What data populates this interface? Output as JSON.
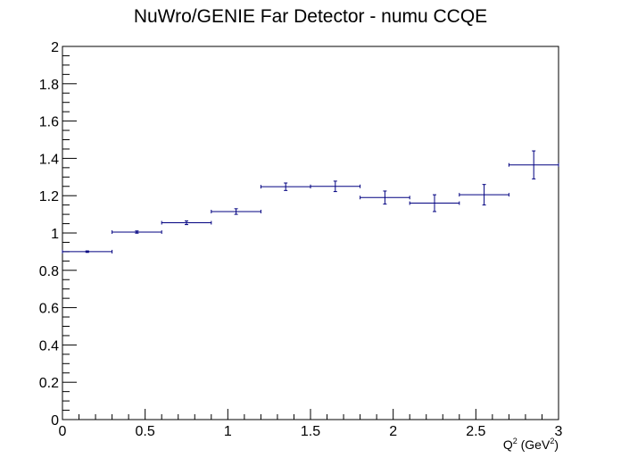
{
  "chart_data": {
    "type": "scatter",
    "title": "NuWro/GENIE Far Detector - numu CCQE",
    "xlabel": {
      "base": "Q",
      "sup": "2",
      "mid": " (GeV",
      "sup2": "2",
      "end": ")"
    },
    "ylabel": "",
    "xlim": [
      0,
      3
    ],
    "ylim": [
      0,
      2
    ],
    "x_ticks": [
      "0",
      "0.5",
      "1",
      "1.5",
      "2",
      "2.5",
      "3"
    ],
    "y_ticks": [
      "0",
      "0.2",
      "0.4",
      "0.6",
      "0.8",
      "1",
      "1.2",
      "1.4",
      "1.6",
      "1.8",
      "2"
    ],
    "grid": false,
    "legend": "none",
    "series": [
      {
        "color": "#000080",
        "points": [
          {
            "x": 0.15,
            "xerr": 0.15,
            "y": 0.9,
            "yerr": 0.004
          },
          {
            "x": 0.45,
            "xerr": 0.15,
            "y": 1.005,
            "yerr": 0.006
          },
          {
            "x": 0.75,
            "xerr": 0.15,
            "y": 1.055,
            "yerr": 0.01
          },
          {
            "x": 1.05,
            "xerr": 0.15,
            "y": 1.115,
            "yerr": 0.015
          },
          {
            "x": 1.35,
            "xerr": 0.15,
            "y": 1.248,
            "yerr": 0.02
          },
          {
            "x": 1.65,
            "xerr": 0.15,
            "y": 1.25,
            "yerr": 0.028
          },
          {
            "x": 1.95,
            "xerr": 0.15,
            "y": 1.19,
            "yerr": 0.035
          },
          {
            "x": 2.25,
            "xerr": 0.15,
            "y": 1.16,
            "yerr": 0.045
          },
          {
            "x": 2.55,
            "xerr": 0.15,
            "y": 1.205,
            "yerr": 0.055
          },
          {
            "x": 2.85,
            "xerr": 0.15,
            "y": 1.365,
            "yerr": 0.075
          }
        ]
      }
    ]
  }
}
